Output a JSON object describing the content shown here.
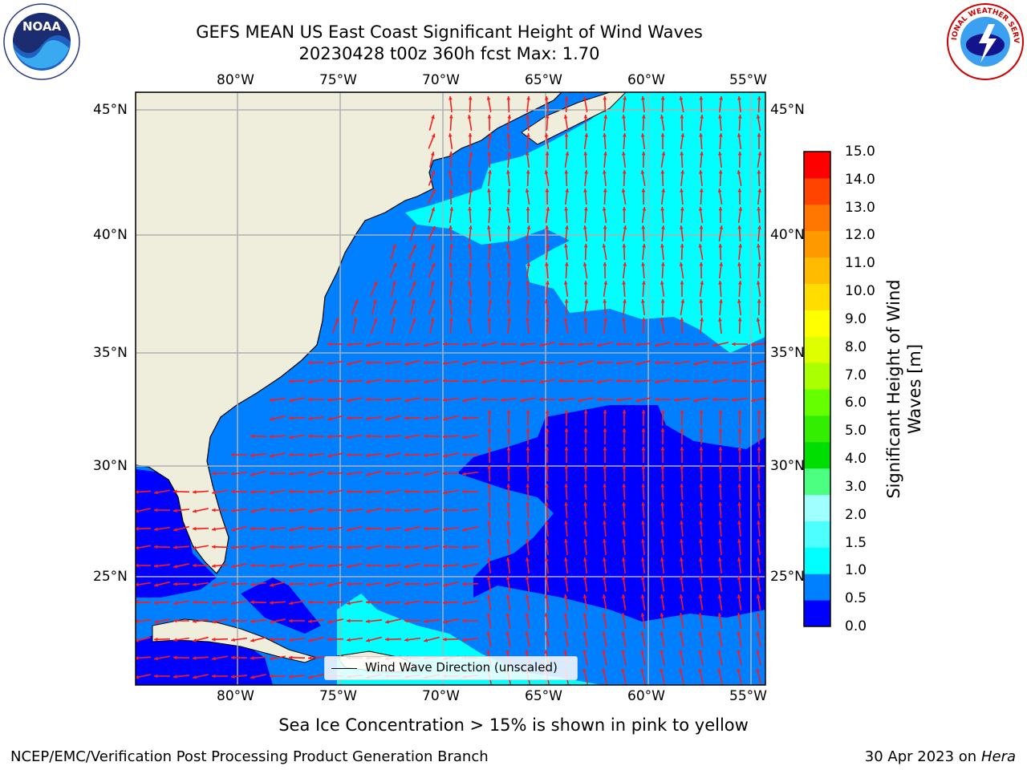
{
  "header": {
    "title_line1": "GEFS MEAN US East Coast Significant Height of Wind Waves",
    "title_line2": "20230428 t00z 360h fcst   Max: 1.70"
  },
  "logos": {
    "left": {
      "name": "noaa-logo",
      "text": "NOAA"
    },
    "right": {
      "name": "nws-logo",
      "text": "NATIONAL WEATHER SERVICE"
    }
  },
  "map": {
    "lon_labels": [
      "80°W",
      "75°W",
      "70°W",
      "65°W",
      "60°W",
      "55°W"
    ],
    "lat_labels": [
      "45°N",
      "40°N",
      "35°N",
      "30°N",
      "25°N"
    ],
    "colors": {
      "land": "#efeedc",
      "ocean_0_0.5": "#0000ff",
      "ocean_0.5_1.0": "#0080ff",
      "ocean_1.0_1.5": "#00ffff",
      "ocean_1.5_2.0": "#4dffff",
      "gridline": "#b0b0b0",
      "arrow": "#ff1a1a"
    },
    "legend_text": "Wind Wave Direction (unscaled)"
  },
  "colorbar": {
    "label": "Significant Height of Wind Waves [m]",
    "label_line1": "Significant Height of Wind",
    "label_line2": "Waves [m]",
    "ticks": [
      "15.0",
      "14.0",
      "13.0",
      "12.0",
      "11.0",
      "10.0",
      "9.0",
      "8.0",
      "7.0",
      "6.0",
      "5.0",
      "4.0",
      "3.0",
      "2.0",
      "1.5",
      "1.0",
      "0.5",
      "0.0"
    ],
    "colors_bottom_to_top": [
      "#0000ff",
      "#0080ff",
      "#00ffff",
      "#4dffff",
      "#a0ffff",
      "#4dff80",
      "#00dd00",
      "#33ee00",
      "#66ff00",
      "#aaff00",
      "#ddff00",
      "#ffff00",
      "#ffdd00",
      "#ffbb00",
      "#ff9900",
      "#ff7700",
      "#ff4400",
      "#ff0000"
    ]
  },
  "footer": {
    "note": "Sea Ice Concentration > 15% is shown in pink to yellow",
    "left": "NCEP/EMC/Verification Post Processing Product Generation Branch",
    "right_prefix": "30 Apr 2023 on ",
    "right_host": "Hera"
  }
}
